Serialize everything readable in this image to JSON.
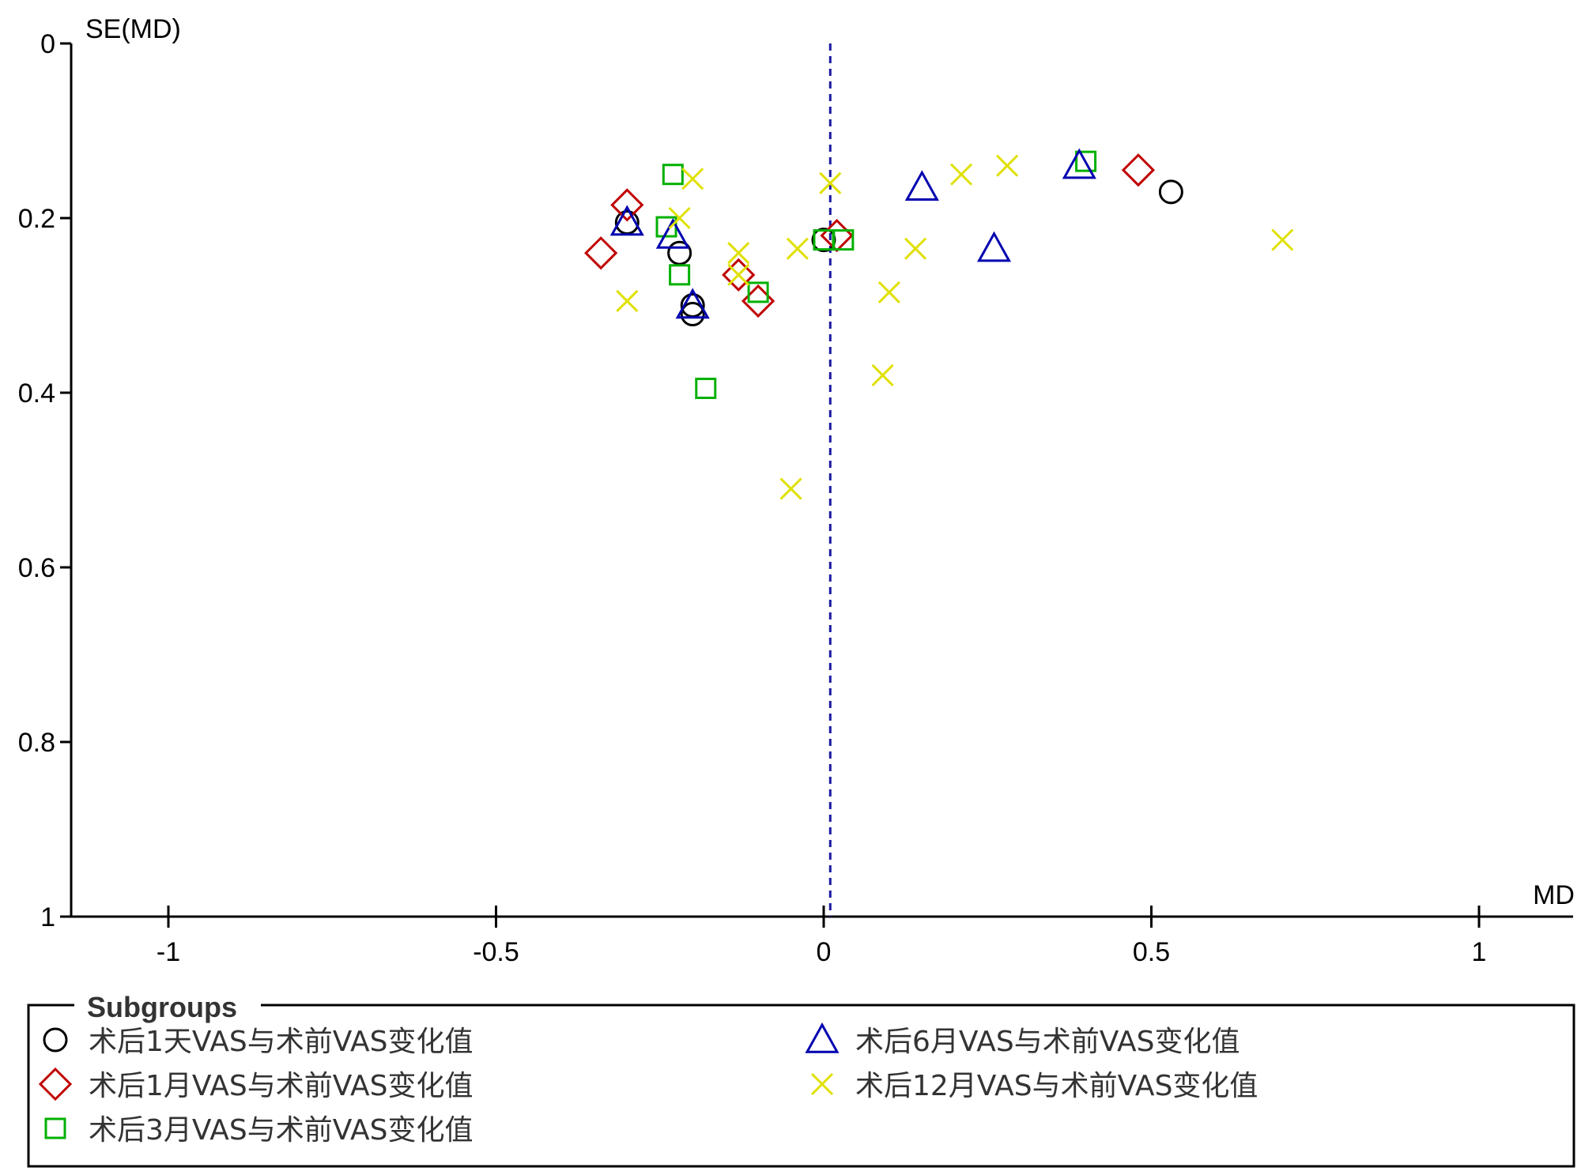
{
  "chart_data": {
    "type": "scatter",
    "title": "",
    "xlabel": "MD",
    "ylabel": "SE(MD)",
    "xlim": [
      -1.15,
      1.15
    ],
    "ylim": [
      0,
      1
    ],
    "y_inverted": true,
    "x_ticks": [
      "-1",
      "-0.5",
      "0",
      "0.5",
      "1"
    ],
    "y_ticks": [
      "0",
      "0.2",
      "0.4",
      "0.6",
      "0.8",
      "1"
    ],
    "reference_line": {
      "x": 0.01,
      "style": "dashed",
      "color": "#1a1aa0"
    },
    "legend": {
      "title": "Subgroups",
      "placement": "bottom"
    },
    "series": [
      {
        "name": "术后1天VAS与术前VAS变化值",
        "marker": "circle",
        "color": "#000000",
        "points": [
          {
            "x": -0.3,
            "y": 0.205
          },
          {
            "x": -0.22,
            "y": 0.24
          },
          {
            "x": -0.2,
            "y": 0.3
          },
          {
            "x": -0.2,
            "y": 0.31
          },
          {
            "x": 0.0,
            "y": 0.225
          },
          {
            "x": 0.53,
            "y": 0.17
          }
        ]
      },
      {
        "name": "术后1月VAS与术前VAS变化值",
        "marker": "diamond",
        "color": "#c00000",
        "points": [
          {
            "x": -0.3,
            "y": 0.185
          },
          {
            "x": -0.34,
            "y": 0.24
          },
          {
            "x": -0.13,
            "y": 0.265
          },
          {
            "x": -0.1,
            "y": 0.295
          },
          {
            "x": 0.02,
            "y": 0.22
          },
          {
            "x": 0.48,
            "y": 0.145
          }
        ]
      },
      {
        "name": "术后3月VAS与术前VAS变化值",
        "marker": "square",
        "color": "#00b000",
        "points": [
          {
            "x": -0.23,
            "y": 0.15
          },
          {
            "x": -0.24,
            "y": 0.21
          },
          {
            "x": -0.22,
            "y": 0.265
          },
          {
            "x": -0.1,
            "y": 0.285
          },
          {
            "x": -0.18,
            "y": 0.395
          },
          {
            "x": 0.0,
            "y": 0.225
          },
          {
            "x": 0.03,
            "y": 0.225
          },
          {
            "x": 0.4,
            "y": 0.135
          }
        ]
      },
      {
        "name": "术后6月VAS与术前VAS变化值",
        "marker": "triangle",
        "color": "#0000b0",
        "points": [
          {
            "x": -0.3,
            "y": 0.205
          },
          {
            "x": -0.23,
            "y": 0.22
          },
          {
            "x": -0.2,
            "y": 0.3
          },
          {
            "x": 0.15,
            "y": 0.165
          },
          {
            "x": 0.26,
            "y": 0.235
          },
          {
            "x": 0.39,
            "y": 0.14
          }
        ]
      },
      {
        "name": "术后12月VAS与术前VAS变化值",
        "marker": "x",
        "color": "#e0e000",
        "points": [
          {
            "x": -0.3,
            "y": 0.295
          },
          {
            "x": -0.2,
            "y": 0.155
          },
          {
            "x": -0.22,
            "y": 0.2
          },
          {
            "x": -0.13,
            "y": 0.24
          },
          {
            "x": -0.13,
            "y": 0.265
          },
          {
            "x": -0.04,
            "y": 0.235
          },
          {
            "x": -0.05,
            "y": 0.51
          },
          {
            "x": 0.01,
            "y": 0.16
          },
          {
            "x": 0.1,
            "y": 0.285
          },
          {
            "x": 0.09,
            "y": 0.38
          },
          {
            "x": 0.14,
            "y": 0.235
          },
          {
            "x": 0.21,
            "y": 0.15
          },
          {
            "x": 0.28,
            "y": 0.14
          },
          {
            "x": 0.7,
            "y": 0.225
          }
        ]
      }
    ]
  }
}
